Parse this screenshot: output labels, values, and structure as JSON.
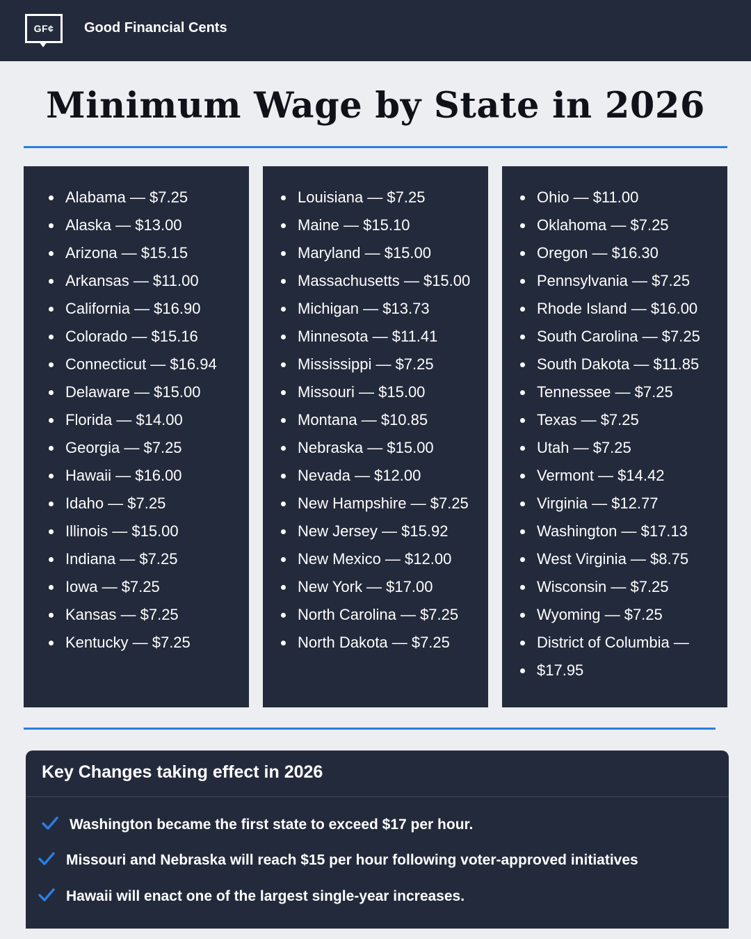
{
  "header": {
    "logo_text": "GF¢",
    "brand": "Good Financial Cents"
  },
  "title": "Minimum Wage by State in 2026",
  "columns": [
    [
      "Alabama — $7.25",
      "Alaska — $13.00",
      "Arizona — $15.15",
      "Arkansas — $11.00",
      "California — $16.90",
      "Colorado — $15.16",
      "Connecticut — $16.94",
      "Delaware — $15.00",
      "Florida — $14.00",
      "Georgia — $7.25",
      "Hawaii — $16.00",
      "Idaho — $7.25",
      "Illinois — $15.00",
      "Indiana — $7.25",
      "Iowa — $7.25",
      "Kansas — $7.25",
      "Kentucky — $7.25"
    ],
    [
      "Louisiana — $7.25",
      "Maine — $15.10",
      "Maryland — $15.00",
      "Massachusetts — $15.00",
      "Michigan — $13.73",
      "Minnesota — $11.41",
      "Mississippi — $7.25",
      "Missouri — $15.00",
      "Montana — $10.85",
      "Nebraska — $15.00",
      "Nevada — $12.00",
      "New Hampshire — $7.25",
      "New Jersey — $15.92",
      "New Mexico — $12.00",
      "New York — $17.00",
      "North Carolina — $7.25",
      "North Dakota — $7.25"
    ],
    [
      "Ohio — $11.00",
      "Oklahoma — $7.25",
      "Oregon — $16.30",
      "Pennsylvania — $7.25",
      "Rhode Island — $16.00",
      "South Carolina — $7.25",
      "South Dakota — $11.85",
      "Tennessee — $7.25",
      "Texas — $7.25",
      "Utah — $7.25",
      "Vermont — $14.42",
      "Virginia — $12.77",
      "Washington — $17.13",
      "West Virginia — $8.75",
      "Wisconsin — $7.25",
      "Wyoming — $7.25",
      "District of Columbia —",
      "$17.95"
    ]
  ],
  "key_changes": {
    "title": "Key Changes taking effect in 2026",
    "check_color": "#2a7de1",
    "items": [
      "Washington became the first state to exceed $17 per hour.",
      "Missouri and Nebraska will reach $15 per hour following voter-approved initiatives",
      "Hawaii will enact one of the largest single-year increases."
    ]
  }
}
